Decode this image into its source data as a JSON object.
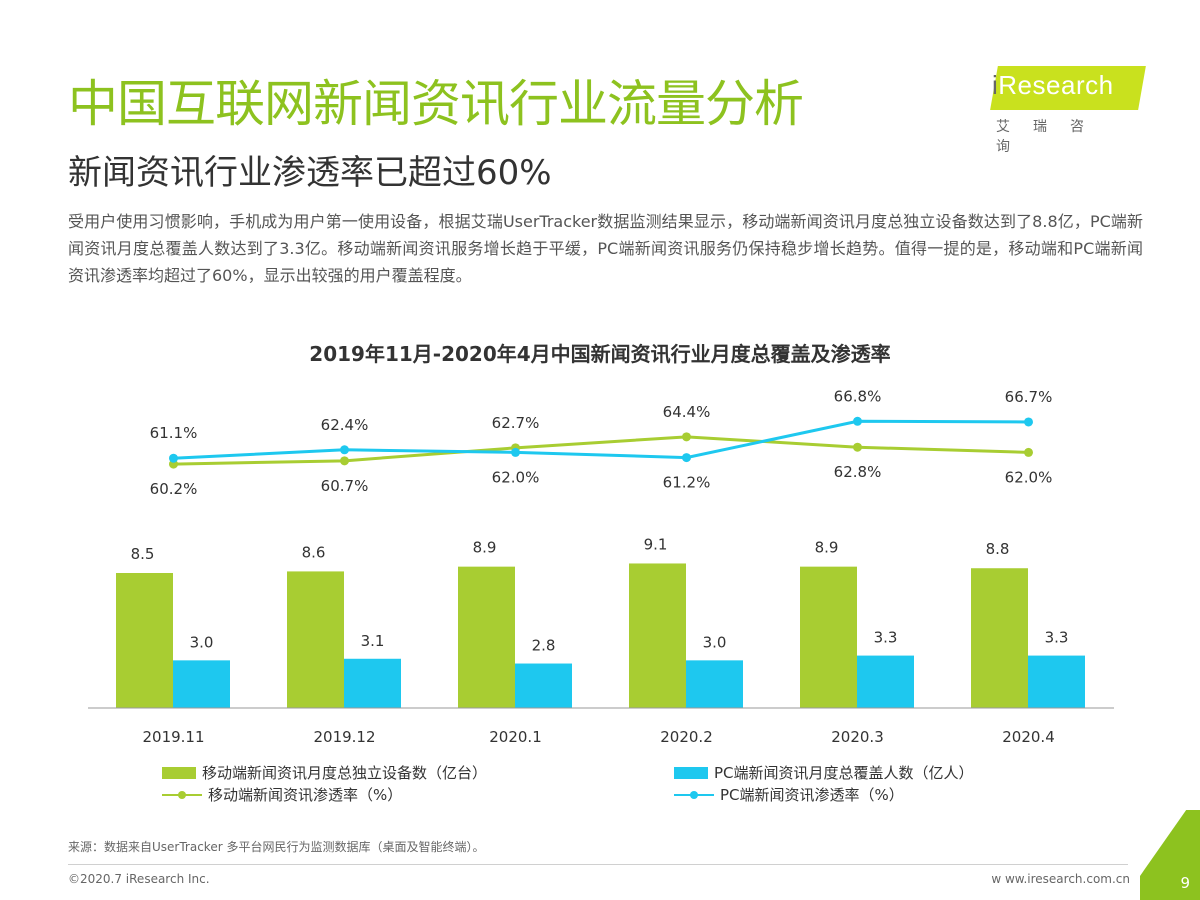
{
  "header": {
    "title": "中国互联网新闻资讯行业流量分析",
    "subtitle": "新闻资讯行业渗透率已超过60%",
    "summary": "受用户使用习惯影响，手机成为用户第一使用设备，根据艾瑞UserTracker数据监测结果显示，移动端新闻资讯月度总独立设备数达到了8.8亿，PC端新闻资讯月度总覆盖人数达到了3.3亿。移动端新闻资讯服务增长趋于平缓，PC端新闻资讯服务仍保持稳步增长趋势。值得一提的是，移动端和PC端新闻资讯渗透率均超过了60%，显示出较强的用户覆盖程度。"
  },
  "logo": {
    "prefix": "i",
    "name": "Research",
    "cn": "艾瑞咨询"
  },
  "chart_data": {
    "type": "bar",
    "title": "2019年11月-2020年4月中国新闻资讯行业月度总覆盖及渗透率",
    "categories": [
      "2019.11",
      "2019.12",
      "2020.1",
      "2020.2",
      "2020.3",
      "2020.4"
    ],
    "series": [
      {
        "name": "移动端新闻资讯月度总独立设备数（亿台）",
        "type": "bar",
        "color": "#a8cd32",
        "values": [
          8.5,
          8.6,
          8.9,
          9.1,
          8.9,
          8.8
        ]
      },
      {
        "name": "PC端新闻资讯月度总覆盖人数（亿人）",
        "type": "bar",
        "color": "#1ec8ef",
        "values": [
          3.0,
          3.1,
          2.8,
          3.0,
          3.3,
          3.3
        ]
      },
      {
        "name": "移动端新闻资讯渗透率（%）",
        "type": "line",
        "color": "#a8cd32",
        "values": [
          60.2,
          60.7,
          62.7,
          64.4,
          62.8,
          62.0
        ]
      },
      {
        "name": "PC端新闻资讯渗透率（%）",
        "type": "line",
        "color": "#1ec8ef",
        "values": [
          61.1,
          62.4,
          62.0,
          61.2,
          66.8,
          66.7
        ]
      }
    ],
    "bar_ylim": [
      0,
      10
    ],
    "line_ylim": [
      40,
      70
    ],
    "xlabel": "",
    "ylabel": "",
    "grid": false,
    "legend": "bottom"
  },
  "footer": {
    "source": "来源：数据来自UserTracker 多平台网民行为监测数据库（桌面及智能终端）。",
    "copyright": "©2020.7 iResearch Inc.",
    "website": "w ww.iresearch.com.cn",
    "page": "9"
  }
}
